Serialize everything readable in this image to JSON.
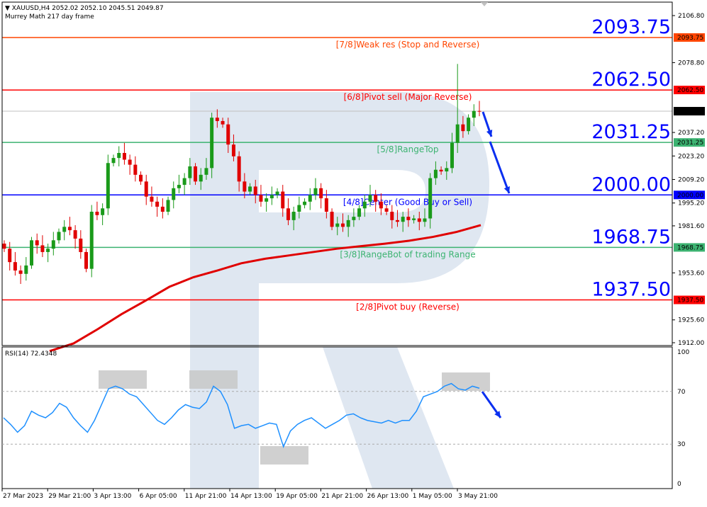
{
  "header": {
    "symbol_line": "XAUUSD,H4  2052.02 2052.10 2045.51 2049.87",
    "indicator": "Murrey Math 217 day frame"
  },
  "rsi_label": "RSI(14) 72.4348",
  "chart_data": {
    "type": "candlestick",
    "title": "XAUUSD,H4",
    "price_axis": {
      "range": [
        1912.0,
        2106.8
      ],
      "ticks": [
        "2106.80",
        "2078.80",
        "2037.20",
        "2023.20",
        "2009.20",
        "1995.20",
        "1981.60",
        "1953.60",
        "1925.60",
        "1912.00"
      ]
    },
    "current_price": "2049.87",
    "time_labels": [
      "27 Mar 2023",
      "29 Mar 21:00",
      "3 Apr 13:00",
      "6 Apr 05:00",
      "11 Apr 21:00",
      "14 Apr 13:00",
      "19 Apr 05:00",
      "21 Apr 21:00",
      "26 Apr 13:00",
      "1 May 05:00",
      "3 May 21:00"
    ],
    "murrey_levels": [
      {
        "value": 2093.75,
        "tag": "2093.75",
        "label": "[7/8]Weak res (Stop and Reverse)",
        "color": "#ff4500"
      },
      {
        "value": 2062.5,
        "tag": "2062.50",
        "label": "[6/8]Pivot sell (Major Reverse)",
        "color": "#ff0000"
      },
      {
        "value": 2031.25,
        "tag": "2031.25",
        "label": "[5/8]RangeTop",
        "color": "#3cb371"
      },
      {
        "value": 2000.0,
        "tag": "2000.00",
        "label": "[4/8]Center (Good Buy or Sell)",
        "color": "#0000ff"
      },
      {
        "value": 1968.75,
        "tag": "1968.75",
        "label": "[3/8]RangeBot of trading Range",
        "color": "#3cb371"
      },
      {
        "value": 1937.5,
        "tag": "1937.50",
        "label": "[2/8]Pivot buy (Reverse)",
        "color": "#ff0000"
      }
    ],
    "closes": [
      1968,
      1960,
      1955,
      1953,
      1958,
      1973,
      1970,
      1966,
      1968,
      1973,
      1978,
      1981,
      1979,
      1974,
      1966,
      1956,
      1990,
      1988,
      1992,
      2019,
      2022,
      2025,
      2021,
      2018,
      2012,
      2008,
      1999,
      1996,
      1993,
      1990,
      1997,
      2004,
      2006,
      2010,
      2017,
      2008,
      2012,
      2016,
      2046,
      2044,
      2042,
      2030,
      2023,
      2008,
      2002,
      2005,
      2000,
      1996,
      1998,
      2000,
      2002,
      1992,
      1985,
      1990,
      1994,
      1996,
      2000,
      2004,
      1998,
      1990,
      1981,
      1983,
      1981,
      1985,
      1987,
      1992,
      1996,
      2000,
      1996,
      1992,
      1990,
      1985,
      1984,
      1987,
      1985,
      1986,
      1984,
      1986,
      2010,
      2015,
      2014,
      2016,
      2031,
      2042,
      2038,
      2046,
      2050,
      2049.87
    ],
    "moving_average": {
      "color": "#e00000",
      "values": [
        1907,
        1911.6,
        1920,
        1929,
        1937,
        1945.3,
        1951,
        1955,
        1959.3,
        1962,
        1964,
        1966,
        1968,
        1969.5,
        1971,
        1972.7,
        1975,
        1978,
        1982
      ]
    },
    "rsi": {
      "period": 14,
      "value": 72.4348,
      "levels": [
        30,
        70
      ],
      "ticks": [
        "100",
        "70",
        "30",
        "0"
      ],
      "values": [
        50,
        45,
        39,
        44,
        55,
        52,
        50,
        54,
        61,
        58,
        50,
        44,
        39,
        48,
        60,
        72,
        74,
        72,
        68,
        66,
        60,
        54,
        48,
        45,
        50,
        56,
        60,
        58,
        57,
        62,
        74,
        70,
        60,
        42,
        44,
        45,
        42,
        44,
        46,
        45,
        28,
        40,
        45,
        48,
        50,
        46,
        42,
        45,
        48,
        52,
        53,
        50,
        48,
        47,
        46,
        48,
        46,
        48,
        48,
        55,
        66,
        68,
        70,
        74,
        76,
        72,
        71,
        74,
        72.43
      ]
    },
    "annotations": {
      "big_labels": [
        "2093.75",
        "2062.50",
        "2031.25",
        "2000.00",
        "1968.75",
        "1937.50"
      ]
    }
  }
}
